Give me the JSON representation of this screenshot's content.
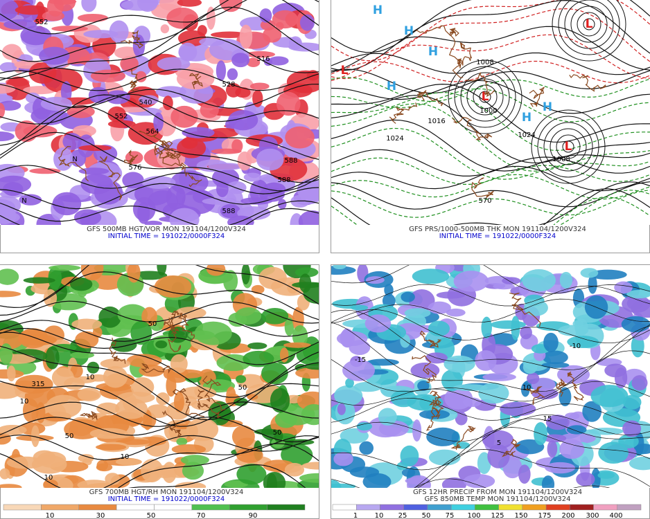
{
  "panels": [
    {
      "lines": [
        "GFS 500MB HGT/VOR MON 191104/1200V324",
        "INITIAL TIME = 191022/0000F324"
      ],
      "labels": [
        "552",
        "516",
        "528",
        "540",
        "552",
        "564",
        "576",
        "588",
        "588",
        "588",
        "N",
        "N"
      ]
    },
    {
      "lines": [
        "GFS PRS/1000-500MB THK MON 191104/1200V324",
        "INITIAL TIME = 191022/0000F324"
      ],
      "labels": [
        "H",
        "H",
        "H",
        "H",
        "H",
        "H",
        "L",
        "L",
        "L",
        "L",
        "1024",
        "1008",
        "1000",
        "1024",
        "1016",
        "1008",
        "570"
      ]
    },
    {
      "lines": [
        "GFS 700MB HGT/RH MON 191104/1200V324",
        "INITIAL TIME = 191022/0000F324"
      ],
      "labels": [
        "315",
        "10",
        "10",
        "10",
        "50",
        "50",
        "50",
        "50",
        "10"
      ]
    },
    {
      "lines": [
        "GFS 12HR PRECIP FROM MON 191104/1200V324",
        "GFS 850MB TEMP MON 191104/1200V324"
      ],
      "labels": [
        "-10",
        "10",
        "15",
        "-15",
        "5"
      ]
    }
  ],
  "colorbars": [
    {
      "ticks": [
        10,
        30,
        50,
        70,
        90
      ]
    },
    {
      "ticks": [
        1,
        10,
        25,
        50,
        75,
        100,
        125,
        150,
        175,
        200,
        300,
        400
      ]
    }
  ]
}
